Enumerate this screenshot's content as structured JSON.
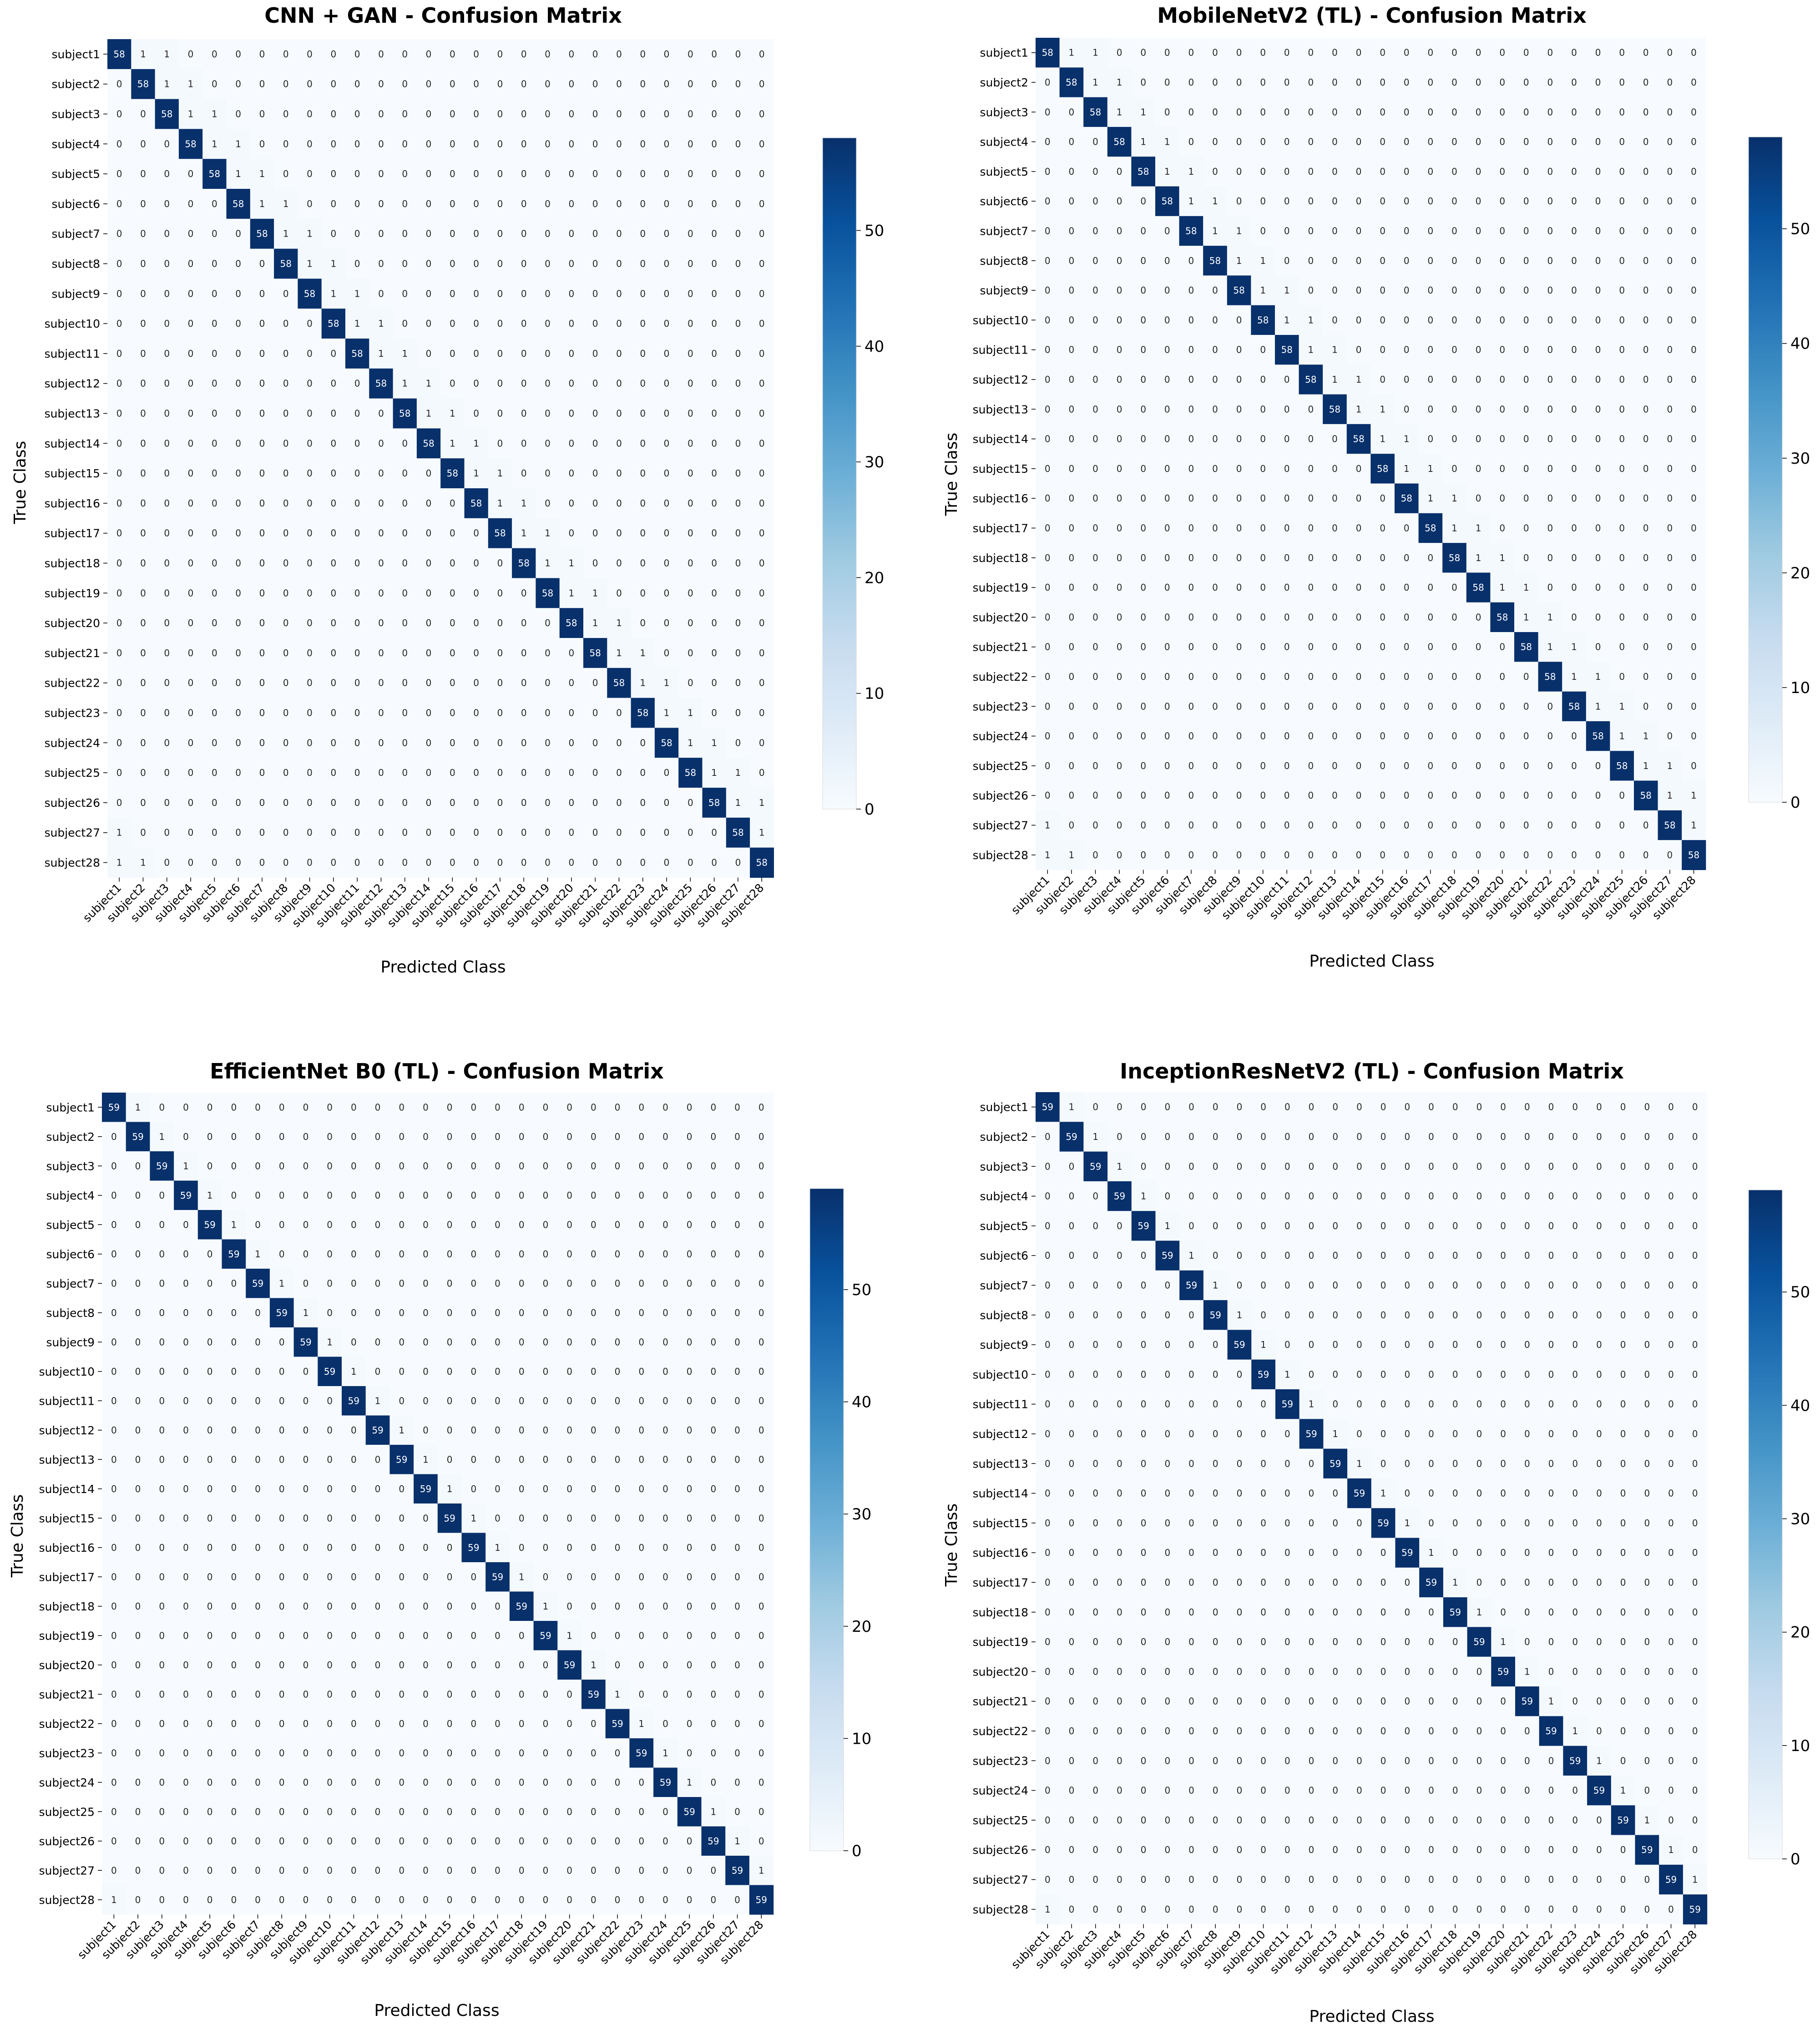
{
  "chart_data": [
    {
      "type": "heatmap",
      "title": "CNN + GAN - Confusion Matrix",
      "xlabel": "Predicted Class",
      "ylabel": "True Class",
      "classes": [
        "subject1",
        "subject2",
        "subject3",
        "subject4",
        "subject5",
        "subject6",
        "subject7",
        "subject8",
        "subject9",
        "subject10",
        "subject11",
        "subject12",
        "subject13",
        "subject14",
        "subject15",
        "subject16",
        "subject17",
        "subject18",
        "subject19",
        "subject20",
        "subject21",
        "subject22",
        "subject23",
        "subject24",
        "subject25",
        "subject26",
        "subject27",
        "subject28"
      ],
      "diagonal": 58,
      "colorbar": {
        "min": 0,
        "max": 58,
        "ticks": [
          0,
          10,
          20,
          30,
          40,
          50
        ]
      },
      "colormap": "Blues",
      "off_diagonal_nonzero": [
        [
          0,
          1,
          1
        ],
        [
          0,
          2,
          1
        ],
        [
          1,
          2,
          1
        ],
        [
          1,
          3,
          1
        ],
        [
          2,
          3,
          1
        ],
        [
          2,
          4,
          1
        ],
        [
          3,
          4,
          1
        ],
        [
          3,
          5,
          1
        ],
        [
          4,
          5,
          1
        ],
        [
          4,
          6,
          1
        ],
        [
          5,
          6,
          1
        ],
        [
          5,
          7,
          1
        ],
        [
          6,
          7,
          1
        ],
        [
          6,
          8,
          1
        ],
        [
          7,
          8,
          1
        ],
        [
          7,
          9,
          1
        ],
        [
          8,
          9,
          1
        ],
        [
          8,
          10,
          1
        ],
        [
          9,
          10,
          1
        ],
        [
          9,
          11,
          1
        ],
        [
          10,
          11,
          1
        ],
        [
          10,
          12,
          1
        ],
        [
          11,
          12,
          1
        ],
        [
          11,
          13,
          1
        ],
        [
          12,
          13,
          1
        ],
        [
          12,
          14,
          1
        ],
        [
          13,
          14,
          1
        ],
        [
          13,
          15,
          1
        ],
        [
          14,
          15,
          1
        ],
        [
          14,
          16,
          1
        ],
        [
          15,
          16,
          1
        ],
        [
          15,
          17,
          1
        ],
        [
          16,
          17,
          1
        ],
        [
          16,
          18,
          1
        ],
        [
          17,
          18,
          1
        ],
        [
          17,
          19,
          1
        ],
        [
          18,
          19,
          1
        ],
        [
          18,
          20,
          1
        ],
        [
          19,
          20,
          1
        ],
        [
          19,
          21,
          1
        ],
        [
          20,
          21,
          1
        ],
        [
          20,
          22,
          1
        ],
        [
          21,
          22,
          1
        ],
        [
          21,
          23,
          1
        ],
        [
          22,
          23,
          1
        ],
        [
          22,
          24,
          1
        ],
        [
          23,
          24,
          1
        ],
        [
          23,
          25,
          1
        ],
        [
          24,
          25,
          1
        ],
        [
          24,
          26,
          1
        ],
        [
          25,
          26,
          1
        ],
        [
          25,
          27,
          1
        ],
        [
          26,
          27,
          1
        ],
        [
          26,
          0,
          1
        ],
        [
          27,
          0,
          1
        ],
        [
          27,
          1,
          1
        ]
      ]
    },
    {
      "type": "heatmap",
      "title": "MobileNetV2 (TL) - Confusion Matrix",
      "xlabel": "Predicted Class",
      "ylabel": "True Class",
      "classes": [
        "subject1",
        "subject2",
        "subject3",
        "subject4",
        "subject5",
        "subject6",
        "subject7",
        "subject8",
        "subject9",
        "subject10",
        "subject11",
        "subject12",
        "subject13",
        "subject14",
        "subject15",
        "subject16",
        "subject17",
        "subject18",
        "subject19",
        "subject20",
        "subject21",
        "subject22",
        "subject23",
        "subject24",
        "subject25",
        "subject26",
        "subject27",
        "subject28"
      ],
      "diagonal": 58,
      "colorbar": {
        "min": 0,
        "max": 58,
        "ticks": [
          0,
          10,
          20,
          30,
          40,
          50
        ]
      },
      "colormap": "Blues",
      "off_diagonal_nonzero": [
        [
          0,
          1,
          1
        ],
        [
          0,
          2,
          1
        ],
        [
          1,
          2,
          1
        ],
        [
          1,
          3,
          1
        ],
        [
          2,
          3,
          1
        ],
        [
          2,
          4,
          1
        ],
        [
          3,
          4,
          1
        ],
        [
          3,
          5,
          1
        ],
        [
          4,
          5,
          1
        ],
        [
          4,
          6,
          1
        ],
        [
          5,
          6,
          1
        ],
        [
          5,
          7,
          1
        ],
        [
          6,
          7,
          1
        ],
        [
          6,
          8,
          1
        ],
        [
          7,
          8,
          1
        ],
        [
          7,
          9,
          1
        ],
        [
          8,
          9,
          1
        ],
        [
          8,
          10,
          1
        ],
        [
          9,
          10,
          1
        ],
        [
          9,
          11,
          1
        ],
        [
          10,
          11,
          1
        ],
        [
          10,
          12,
          1
        ],
        [
          11,
          12,
          1
        ],
        [
          11,
          13,
          1
        ],
        [
          12,
          13,
          1
        ],
        [
          12,
          14,
          1
        ],
        [
          13,
          14,
          1
        ],
        [
          13,
          15,
          1
        ],
        [
          14,
          15,
          1
        ],
        [
          14,
          16,
          1
        ],
        [
          15,
          16,
          1
        ],
        [
          15,
          17,
          1
        ],
        [
          16,
          17,
          1
        ],
        [
          16,
          18,
          1
        ],
        [
          17,
          18,
          1
        ],
        [
          17,
          19,
          1
        ],
        [
          18,
          19,
          1
        ],
        [
          18,
          20,
          1
        ],
        [
          19,
          20,
          1
        ],
        [
          19,
          21,
          1
        ],
        [
          20,
          21,
          1
        ],
        [
          20,
          22,
          1
        ],
        [
          21,
          22,
          1
        ],
        [
          21,
          23,
          1
        ],
        [
          22,
          23,
          1
        ],
        [
          22,
          24,
          1
        ],
        [
          23,
          24,
          1
        ],
        [
          23,
          25,
          1
        ],
        [
          24,
          25,
          1
        ],
        [
          24,
          26,
          1
        ],
        [
          25,
          26,
          1
        ],
        [
          25,
          27,
          1
        ],
        [
          26,
          27,
          1
        ],
        [
          26,
          0,
          1
        ],
        [
          27,
          0,
          1
        ],
        [
          27,
          1,
          1
        ]
      ]
    },
    {
      "type": "heatmap",
      "title": "EfficientNet B0 (TL) - Confusion Matrix",
      "xlabel": "Predicted Class",
      "ylabel": "True Class",
      "classes": [
        "subject1",
        "subject2",
        "subject3",
        "subject4",
        "subject5",
        "subject6",
        "subject7",
        "subject8",
        "subject9",
        "subject10",
        "subject11",
        "subject12",
        "subject13",
        "subject14",
        "subject15",
        "subject16",
        "subject17",
        "subject18",
        "subject19",
        "subject20",
        "subject21",
        "subject22",
        "subject23",
        "subject24",
        "subject25",
        "subject26",
        "subject27",
        "subject28"
      ],
      "diagonal": 59,
      "colorbar": {
        "min": 0,
        "max": 59,
        "ticks": [
          0,
          10,
          20,
          30,
          40,
          50
        ]
      },
      "colormap": "Blues",
      "off_diagonal_nonzero": [
        [
          0,
          1,
          1
        ],
        [
          1,
          2,
          1
        ],
        [
          2,
          3,
          1
        ],
        [
          3,
          4,
          1
        ],
        [
          4,
          5,
          1
        ],
        [
          5,
          6,
          1
        ],
        [
          6,
          7,
          1
        ],
        [
          7,
          8,
          1
        ],
        [
          8,
          9,
          1
        ],
        [
          9,
          10,
          1
        ],
        [
          10,
          11,
          1
        ],
        [
          11,
          12,
          1
        ],
        [
          12,
          13,
          1
        ],
        [
          13,
          14,
          1
        ],
        [
          14,
          15,
          1
        ],
        [
          15,
          16,
          1
        ],
        [
          16,
          17,
          1
        ],
        [
          17,
          18,
          1
        ],
        [
          18,
          19,
          1
        ],
        [
          19,
          20,
          1
        ],
        [
          20,
          21,
          1
        ],
        [
          21,
          22,
          1
        ],
        [
          22,
          23,
          1
        ],
        [
          23,
          24,
          1
        ],
        [
          24,
          25,
          1
        ],
        [
          25,
          26,
          1
        ],
        [
          26,
          27,
          1
        ],
        [
          27,
          0,
          1
        ]
      ]
    },
    {
      "type": "heatmap",
      "title": "InceptionResNetV2 (TL) - Confusion Matrix",
      "xlabel": "Predicted Class",
      "ylabel": "True Class",
      "classes": [
        "subject1",
        "subject2",
        "subject3",
        "subject4",
        "subject5",
        "subject6",
        "subject7",
        "subject8",
        "subject9",
        "subject10",
        "subject11",
        "subject12",
        "subject13",
        "subject14",
        "subject15",
        "subject16",
        "subject17",
        "subject18",
        "subject19",
        "subject20",
        "subject21",
        "subject22",
        "subject23",
        "subject24",
        "subject25",
        "subject26",
        "subject27",
        "subject28"
      ],
      "diagonal": 59,
      "colorbar": {
        "min": 0,
        "max": 59,
        "ticks": [
          0,
          10,
          20,
          30,
          40,
          50
        ]
      },
      "colormap": "Blues",
      "off_diagonal_nonzero": [
        [
          0,
          1,
          1
        ],
        [
          1,
          2,
          1
        ],
        [
          2,
          3,
          1
        ],
        [
          3,
          4,
          1
        ],
        [
          4,
          5,
          1
        ],
        [
          5,
          6,
          1
        ],
        [
          6,
          7,
          1
        ],
        [
          7,
          8,
          1
        ],
        [
          8,
          9,
          1
        ],
        [
          9,
          10,
          1
        ],
        [
          10,
          11,
          1
        ],
        [
          11,
          12,
          1
        ],
        [
          12,
          13,
          1
        ],
        [
          13,
          14,
          1
        ],
        [
          14,
          15,
          1
        ],
        [
          15,
          16,
          1
        ],
        [
          16,
          17,
          1
        ],
        [
          17,
          18,
          1
        ],
        [
          18,
          19,
          1
        ],
        [
          19,
          20,
          1
        ],
        [
          20,
          21,
          1
        ],
        [
          21,
          22,
          1
        ],
        [
          22,
          23,
          1
        ],
        [
          23,
          24,
          1
        ],
        [
          24,
          25,
          1
        ],
        [
          25,
          26,
          1
        ],
        [
          26,
          27,
          1
        ],
        [
          27,
          0,
          1
        ]
      ]
    }
  ]
}
